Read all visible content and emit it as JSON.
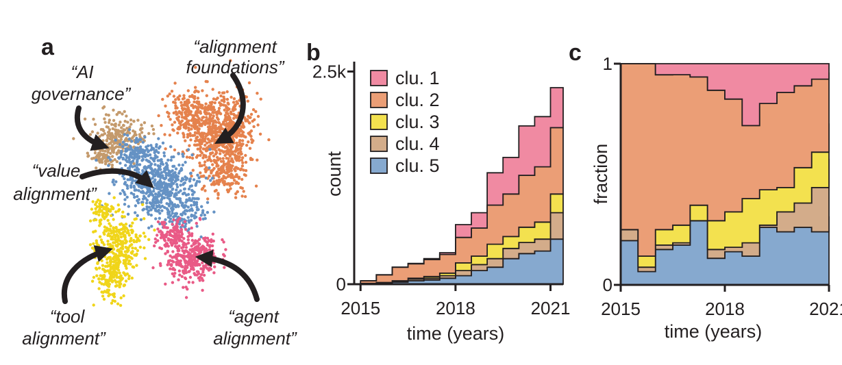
{
  "panels": {
    "a": "a",
    "b": "b",
    "c": "c"
  },
  "colors": {
    "clu1": "#f08aa2",
    "clu2": "#eb9e76",
    "clu3": "#f3e14f",
    "clu4": "#d3ac8a",
    "clu5": "#86a9cf",
    "scatter_foundations": "#e5824d",
    "scatter_governance": "#c49a6c",
    "scatter_value": "#6592c4",
    "scatter_tool": "#f0d51a",
    "scatter_agent": "#e95a86",
    "ink": "#231f20"
  },
  "cluster_labels": {
    "governance": [
      "“AI",
      "governance”"
    ],
    "foundations": [
      "“alignment",
      "foundations”"
    ],
    "value": [
      "“value",
      "alignment”"
    ],
    "tool": [
      "“tool",
      "alignment”"
    ],
    "agent": [
      "“agent",
      "alignment”"
    ]
  },
  "chart_data": [
    {
      "type": "area",
      "panel": "b",
      "stacking": "stacked counts, step histogram",
      "x": [
        2015.0,
        2015.5,
        2016.0,
        2016.5,
        2017.0,
        2017.5,
        2018.0,
        2018.5,
        2019.0,
        2019.5,
        2020.0,
        2020.5,
        2021.0
      ],
      "series": [
        {
          "name": "clu. 1",
          "values": [
            0,
            0,
            0,
            5,
            10,
            20,
            150,
            180,
            380,
            430,
            580,
            590,
            470
          ]
        },
        {
          "name": "clu. 2",
          "values": [
            30,
            90,
            160,
            170,
            200,
            220,
            300,
            330,
            460,
            500,
            610,
            650,
            780
          ]
        },
        {
          "name": "clu. 3",
          "values": [
            0,
            0,
            5,
            10,
            20,
            30,
            90,
            100,
            170,
            140,
            180,
            200,
            220
          ]
        },
        {
          "name": "clu. 4",
          "values": [
            0,
            5,
            10,
            20,
            20,
            30,
            60,
            70,
            100,
            120,
            130,
            140,
            310
          ]
        },
        {
          "name": "clu. 5",
          "values": [
            10,
            15,
            25,
            40,
            50,
            70,
            100,
            160,
            200,
            300,
            360,
            390,
            530
          ]
        }
      ],
      "xlabel": "time (years)",
      "ylabel": "count",
      "xticks": [
        2015,
        2018,
        2021
      ],
      "xticklabels": [
        "2015",
        "2018",
        "2021"
      ],
      "yticks": [
        0,
        2500
      ],
      "yticklabels": [
        "0",
        "2.5k"
      ],
      "xlim": [
        2014.8,
        2021.4
      ],
      "ylim": [
        0,
        2600
      ],
      "legend": {
        "placement": "top-left",
        "entries": [
          "clu. 1",
          "clu. 2",
          "clu. 3",
          "clu. 4",
          "clu. 5"
        ]
      }
    },
    {
      "type": "area",
      "panel": "c",
      "stacking": "stacked fractions, step",
      "x": [
        2015.0,
        2015.5,
        2016.0,
        2016.5,
        2017.0,
        2017.5,
        2018.0,
        2018.5,
        2019.0,
        2019.5,
        2020.0,
        2020.5,
        2021.0
      ],
      "series": [
        {
          "name": "clu. 1",
          "values": [
            0.0,
            0.0,
            0.05,
            0.05,
            0.06,
            0.12,
            0.16,
            0.28,
            0.18,
            0.13,
            0.1,
            0.07,
            0.04
          ]
        },
        {
          "name": "clu. 2",
          "values": [
            0.75,
            0.87,
            0.7,
            0.68,
            0.58,
            0.59,
            0.51,
            0.33,
            0.39,
            0.43,
            0.37,
            0.33,
            0.23
          ]
        },
        {
          "name": "clu. 3",
          "values": [
            0.0,
            0.05,
            0.07,
            0.08,
            0.07,
            0.13,
            0.16,
            0.2,
            0.16,
            0.11,
            0.16,
            0.16,
            0.16
          ]
        },
        {
          "name": "clu. 4",
          "values": [
            0.05,
            0.02,
            0.02,
            0.01,
            0.0,
            0.04,
            0.02,
            0.06,
            0.01,
            0.09,
            0.11,
            0.2,
            0.26
          ]
        },
        {
          "name": "clu. 5",
          "values": [
            0.2,
            0.06,
            0.16,
            0.18,
            0.29,
            0.12,
            0.15,
            0.13,
            0.26,
            0.24,
            0.26,
            0.24,
            0.31
          ]
        }
      ],
      "xlabel": "time (years)",
      "ylabel": "fraction",
      "xticks": [
        2015,
        2018,
        2021
      ],
      "xticklabels": [
        "2015",
        "2018",
        "2021"
      ],
      "yticks": [
        0,
        1
      ],
      "yticklabels": [
        "0",
        "1"
      ],
      "xlim": [
        2015,
        2021
      ],
      "ylim": [
        0,
        1
      ]
    }
  ]
}
